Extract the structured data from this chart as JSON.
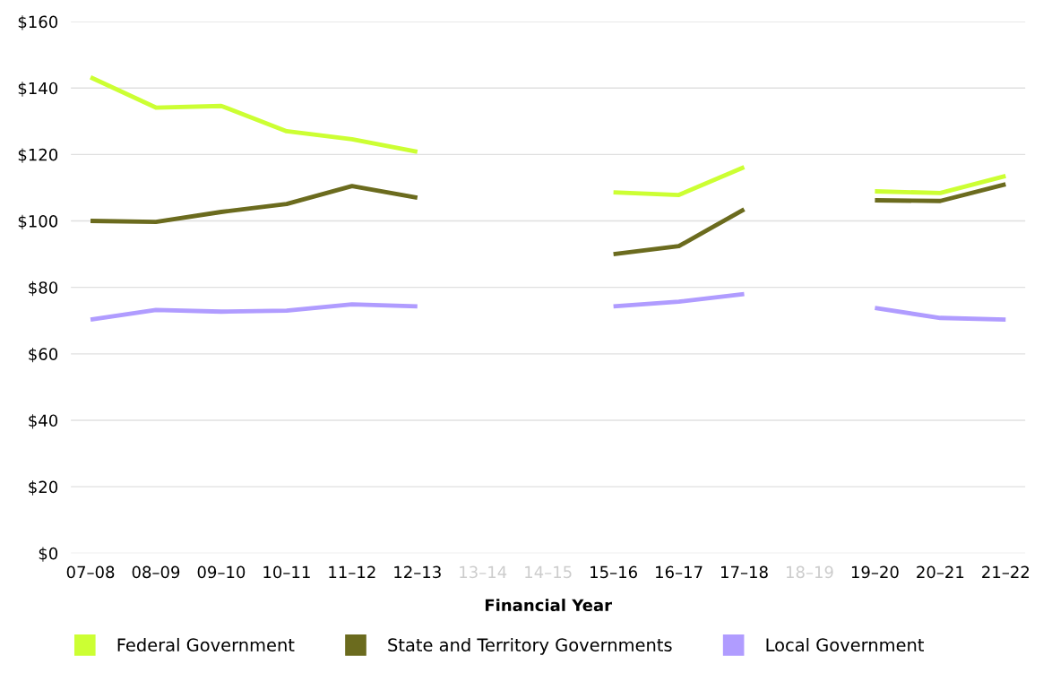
{
  "chart_data": {
    "type": "line",
    "xlabel": "Financial Year",
    "categories": [
      "07–08",
      "08–09",
      "09–10",
      "10–11",
      "11–12",
      "12–13",
      "13–14",
      "14–15",
      "15–16",
      "16–17",
      "17–18",
      "18–19",
      "19–20",
      "20–21",
      "21–22"
    ],
    "series": [
      {
        "name": "Federal Government",
        "color": "#ccff33",
        "values": [
          143.2,
          134.1,
          134.6,
          127,
          124.6,
          120.8,
          null,
          null,
          108.6,
          107.8,
          116.2,
          null,
          108.9,
          108.4,
          113.5
        ]
      },
      {
        "name": "State and Territory Governments",
        "color": "#6b6b1e",
        "values": [
          100,
          99.7,
          102.7,
          105.1,
          110.5,
          107,
          null,
          null,
          90,
          92.4,
          103.5,
          null,
          106.2,
          106,
          111
        ]
      },
      {
        "name": "Local Government",
        "color": "#b09cff",
        "values": [
          70.3,
          73.2,
          72.7,
          73,
          74.9,
          74.3,
          null,
          null,
          74.3,
          75.7,
          78,
          null,
          73.8,
          70.8,
          70.3
        ]
      }
    ],
    "ylim": [
      0,
      160
    ],
    "yticks": [
      {
        "value": 0,
        "label": "$0"
      },
      {
        "value": 20,
        "label": "$20"
      },
      {
        "value": 40,
        "label": "$40"
      },
      {
        "value": 60,
        "label": "$60"
      },
      {
        "value": 80,
        "label": "$80"
      },
      {
        "value": 100,
        "label": "$100"
      },
      {
        "value": 120,
        "label": "$120"
      },
      {
        "value": 140,
        "label": "$140"
      },
      {
        "value": 160,
        "label": "$160"
      }
    ],
    "grid": "y",
    "legend": "bottom",
    "marker": "none",
    "line_style": "solid"
  }
}
